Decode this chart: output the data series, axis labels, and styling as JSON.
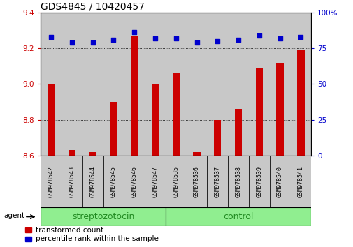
{
  "title": "GDS4845 / 10420457",
  "samples": [
    "GSM978542",
    "GSM978543",
    "GSM978544",
    "GSM978545",
    "GSM978546",
    "GSM978547",
    "GSM978535",
    "GSM978536",
    "GSM978537",
    "GSM978538",
    "GSM978539",
    "GSM978540",
    "GSM978541"
  ],
  "red_values": [
    9.0,
    8.63,
    8.62,
    8.9,
    9.27,
    9.0,
    9.06,
    8.62,
    8.8,
    8.86,
    9.09,
    9.12,
    9.19
  ],
  "blue_values": [
    83,
    79,
    79,
    81,
    86,
    82,
    82,
    79,
    80,
    81,
    84,
    82,
    83
  ],
  "groups": [
    {
      "label": "streptozotocin",
      "start": 0,
      "end": 6
    },
    {
      "label": "control",
      "start": 6,
      "end": 13
    }
  ],
  "ylim_left": [
    8.6,
    9.4
  ],
  "ylim_right": [
    0,
    100
  ],
  "yticks_left": [
    8.6,
    8.8,
    9.0,
    9.2,
    9.4
  ],
  "yticks_right": [
    0,
    25,
    50,
    75,
    100
  ],
  "ytick_labels_right": [
    "0",
    "25",
    "50",
    "75",
    "100%"
  ],
  "red_color": "#cc0000",
  "blue_color": "#0000cc",
  "bar_bg_color": "#c8c8c8",
  "group_green": "#90EE90",
  "group_text_color": "#228B22",
  "agent_label": "agent",
  "legend_items": [
    {
      "color": "#cc0000",
      "label": "transformed count"
    },
    {
      "color": "#0000cc",
      "label": "percentile rank within the sample"
    }
  ],
  "title_fontsize": 10,
  "tick_fontsize": 7.5,
  "sample_fontsize": 6,
  "group_fontsize": 9,
  "legend_fontsize": 7.5
}
